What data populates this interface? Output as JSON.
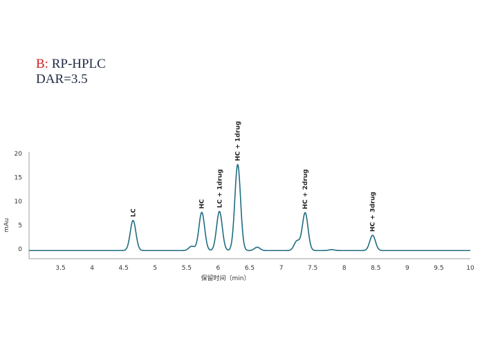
{
  "heading": {
    "panel_letter": "B:",
    "method": "RP-HPLC",
    "dar": "DAR=3.5"
  },
  "colors": {
    "trace": "#1f6b80",
    "panel_letter": "#d11f1f",
    "axis": "#9e9e9e"
  },
  "chart_data": {
    "type": "line",
    "xlabel": "保留时间（min）",
    "ylabel": "mAu",
    "xlim": [
      3.0,
      10.0
    ],
    "ylim": [
      -2,
      20
    ],
    "x_ticks": [
      {
        "value": 3.5,
        "label": "3.5"
      },
      {
        "value": 4,
        "label": "4"
      },
      {
        "value": 4.5,
        "label": "4.5"
      },
      {
        "value": 5,
        "label": "5"
      },
      {
        "value": 5.5,
        "label": "5.5"
      },
      {
        "value": 6,
        "label": "6"
      },
      {
        "value": 6.5,
        "label": "6.5"
      },
      {
        "value": 7,
        "label": "7"
      },
      {
        "value": 7.5,
        "label": "7.5"
      },
      {
        "value": 8,
        "label": "8"
      },
      {
        "value": 8.5,
        "label": "8.5"
      },
      {
        "value": 9,
        "label": "9"
      },
      {
        "value": 9.5,
        "label": "9.5"
      },
      {
        "value": 10,
        "label": "10"
      }
    ],
    "y_ticks": [
      {
        "value": 0,
        "label": "0"
      },
      {
        "value": 5,
        "label": "5"
      },
      {
        "value": 10,
        "label": "10"
      },
      {
        "value": 15,
        "label": "15"
      },
      {
        "value": 20,
        "label": "20"
      }
    ],
    "baseline": -0.3,
    "peaks": [
      {
        "label": "LC",
        "rt": 4.65,
        "height": 6.3
      },
      {
        "label": "HC",
        "rt": 5.74,
        "height": 8.0
      },
      {
        "label": "LC + 1drug",
        "rt": 6.02,
        "height": 8.2
      },
      {
        "label": "HC + 1drug",
        "rt": 6.31,
        "height": 18.0
      },
      {
        "label": "HC + 2drug",
        "rt": 7.38,
        "height": 7.9
      },
      {
        "label": "HC + 3drug",
        "rt": 8.45,
        "height": 3.2
      }
    ],
    "minor_peaks": [
      {
        "rt": 5.58,
        "height": 0.9
      },
      {
        "rt": 6.62,
        "height": 0.7
      },
      {
        "rt": 7.25,
        "height": 2.0
      },
      {
        "rt": 7.8,
        "height": 0.2
      }
    ],
    "grid": false,
    "legend": "none"
  }
}
